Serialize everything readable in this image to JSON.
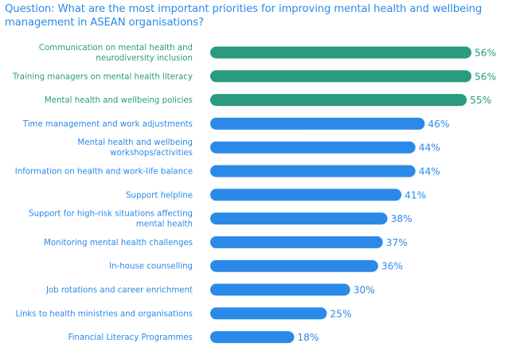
{
  "colors": {
    "top": "#2a9b7f",
    "rest": "#2b8ae8",
    "title": "#2b8ae8"
  },
  "chart_data": {
    "type": "bar",
    "orientation": "horizontal",
    "title": "Question: What are the most important priorities for improving mental health and wellbeing management in ASEAN organisations?",
    "categories": [
      "Communication on mental health and neurodiversity inclusion",
      "Training managers on mental health literacy",
      "Mental health and wellbeing policies",
      "Time management and work adjustments",
      "Mental health and wellbeing workshops/activities",
      "Information on health and work-life balance",
      "Support helpline",
      "Support for high-risk situations affecting mental health",
      "Monitoring mental health challenges",
      "In-house counselling",
      "Job rotations and career enrichment",
      "Links to health ministries and organisations",
      "Financial Literacy Programmes"
    ],
    "label_lines": [
      [
        "Communication on mental health and",
        "neurodiversity inclusion"
      ],
      [
        "Training managers on mental health literacy"
      ],
      [
        "Mental health and wellbeing policies"
      ],
      [
        "Time management and work adjustments"
      ],
      [
        "Mental health and wellbeing",
        "workshops/activities"
      ],
      [
        "Information on health and work-life balance"
      ],
      [
        "Support helpline"
      ],
      [
        "Support for high-risk situations affecting",
        "mental health"
      ],
      [
        "Monitoring mental health challenges"
      ],
      [
        "In-house counselling"
      ],
      [
        "Job rotations and career enrichment"
      ],
      [
        "Links to health ministries and organisations"
      ],
      [
        "Financial Literacy Programmes"
      ]
    ],
    "values": [
      56,
      56,
      55,
      46,
      44,
      44,
      41,
      38,
      37,
      36,
      30,
      25,
      18
    ],
    "value_labels": [
      "56%",
      "56%",
      "55%",
      "46%",
      "44%",
      "44%",
      "41%",
      "38%",
      "37%",
      "36%",
      "30%",
      "25%",
      "18%"
    ],
    "highlight_top": 3,
    "xlim": [
      0,
      56
    ],
    "grid": false,
    "axes": false
  }
}
